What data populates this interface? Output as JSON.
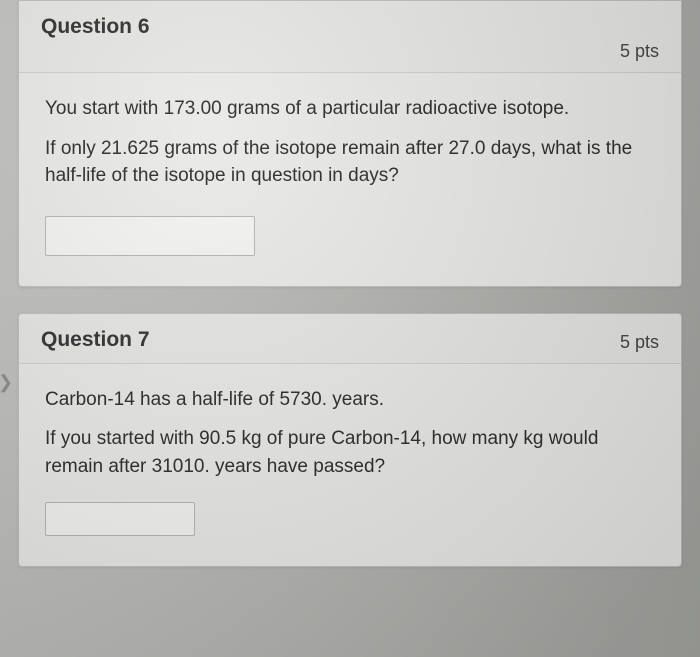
{
  "q6": {
    "title": "Question 6",
    "points": "5 pts",
    "line1": "You start with 173.00 grams of a particular radioactive isotope.",
    "line2": "If only 21.625 grams of the isotope remain after 27.0 days, what is the half-life of the isotope in question in days?",
    "answer_value": ""
  },
  "q7": {
    "title": "Question 7",
    "points": "5 pts",
    "line1": "Carbon-14 has a half-life of 5730. years.",
    "line2": "If you started with 90.5 kg of pure Carbon-14, how many kg would remain after 31010. years have passed?",
    "answer_value": ""
  },
  "colors": {
    "card_bg": "#e9eae7",
    "card_border": "#bfc0bd",
    "header_border": "#cfd0cd",
    "text": "#2c2c2c",
    "page_bg": "#b8b8b5"
  }
}
